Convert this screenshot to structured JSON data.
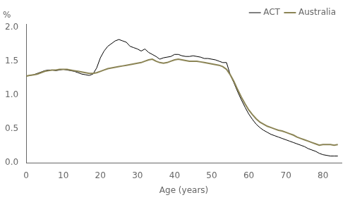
{
  "chart_data": {
    "type": "line",
    "ylabel": "%",
    "xlabel": "Age (years)",
    "xlim": [
      0,
      85
    ],
    "ylim": [
      0.0,
      2.05
    ],
    "xticks": [
      0,
      10,
      20,
      30,
      40,
      50,
      60,
      70,
      80
    ],
    "yticks": [
      {
        "value": 0.0,
        "label": "0.0"
      },
      0.5,
      {
        "value": 1.0,
        "label": "1.0"
      },
      1.5,
      {
        "value": 2.0,
        "label": "2.0"
      }
    ],
    "grid": false,
    "legend": "upper right",
    "x": [
      0,
      1,
      2,
      3,
      4,
      5,
      6,
      7,
      8,
      9,
      10,
      11,
      12,
      13,
      14,
      15,
      16,
      17,
      18,
      19,
      20,
      21,
      22,
      23,
      24,
      25,
      26,
      27,
      28,
      29,
      30,
      31,
      32,
      33,
      34,
      35,
      36,
      37,
      38,
      39,
      40,
      41,
      42,
      43,
      44,
      45,
      46,
      47,
      48,
      49,
      50,
      51,
      52,
      53,
      54,
      55,
      56,
      57,
      58,
      59,
      60,
      61,
      62,
      63,
      64,
      65,
      66,
      67,
      68,
      69,
      70,
      71,
      72,
      73,
      74,
      75,
      76,
      77,
      78,
      79,
      80,
      81,
      82,
      83,
      84
    ],
    "series": [
      {
        "name": "Australia",
        "color": "#8b8455",
        "values": [
          1.28,
          1.29,
          1.3,
          1.31,
          1.33,
          1.35,
          1.36,
          1.37,
          1.37,
          1.38,
          1.38,
          1.38,
          1.37,
          1.36,
          1.35,
          1.34,
          1.33,
          1.32,
          1.32,
          1.33,
          1.35,
          1.37,
          1.39,
          1.4,
          1.41,
          1.42,
          1.43,
          1.44,
          1.45,
          1.46,
          1.47,
          1.48,
          1.5,
          1.52,
          1.53,
          1.5,
          1.48,
          1.47,
          1.48,
          1.5,
          1.52,
          1.53,
          1.52,
          1.51,
          1.5,
          1.5,
          1.5,
          1.49,
          1.48,
          1.47,
          1.46,
          1.45,
          1.44,
          1.42,
          1.38,
          1.3,
          1.2,
          1.08,
          0.97,
          0.87,
          0.78,
          0.71,
          0.65,
          0.6,
          0.57,
          0.54,
          0.52,
          0.5,
          0.48,
          0.47,
          0.45,
          0.43,
          0.41,
          0.38,
          0.36,
          0.34,
          0.32,
          0.3,
          0.28,
          0.26,
          0.27,
          0.27,
          0.27,
          0.26,
          0.27
        ]
      },
      {
        "name": "ACT",
        "color": "#000000",
        "values": [
          1.28,
          1.29,
          1.3,
          1.32,
          1.34,
          1.36,
          1.37,
          1.37,
          1.36,
          1.37,
          1.38,
          1.37,
          1.36,
          1.35,
          1.33,
          1.31,
          1.3,
          1.29,
          1.31,
          1.4,
          1.55,
          1.65,
          1.72,
          1.76,
          1.8,
          1.82,
          1.8,
          1.78,
          1.72,
          1.7,
          1.68,
          1.65,
          1.68,
          1.63,
          1.6,
          1.57,
          1.53,
          1.55,
          1.56,
          1.57,
          1.6,
          1.6,
          1.58,
          1.57,
          1.57,
          1.58,
          1.57,
          1.56,
          1.54,
          1.54,
          1.53,
          1.52,
          1.5,
          1.48,
          1.48,
          1.3,
          1.18,
          1.05,
          0.93,
          0.82,
          0.72,
          0.64,
          0.57,
          0.52,
          0.48,
          0.45,
          0.42,
          0.4,
          0.38,
          0.36,
          0.34,
          0.32,
          0.3,
          0.28,
          0.26,
          0.24,
          0.21,
          0.19,
          0.17,
          0.14,
          0.12,
          0.11,
          0.1,
          0.1,
          0.1
        ]
      }
    ]
  }
}
